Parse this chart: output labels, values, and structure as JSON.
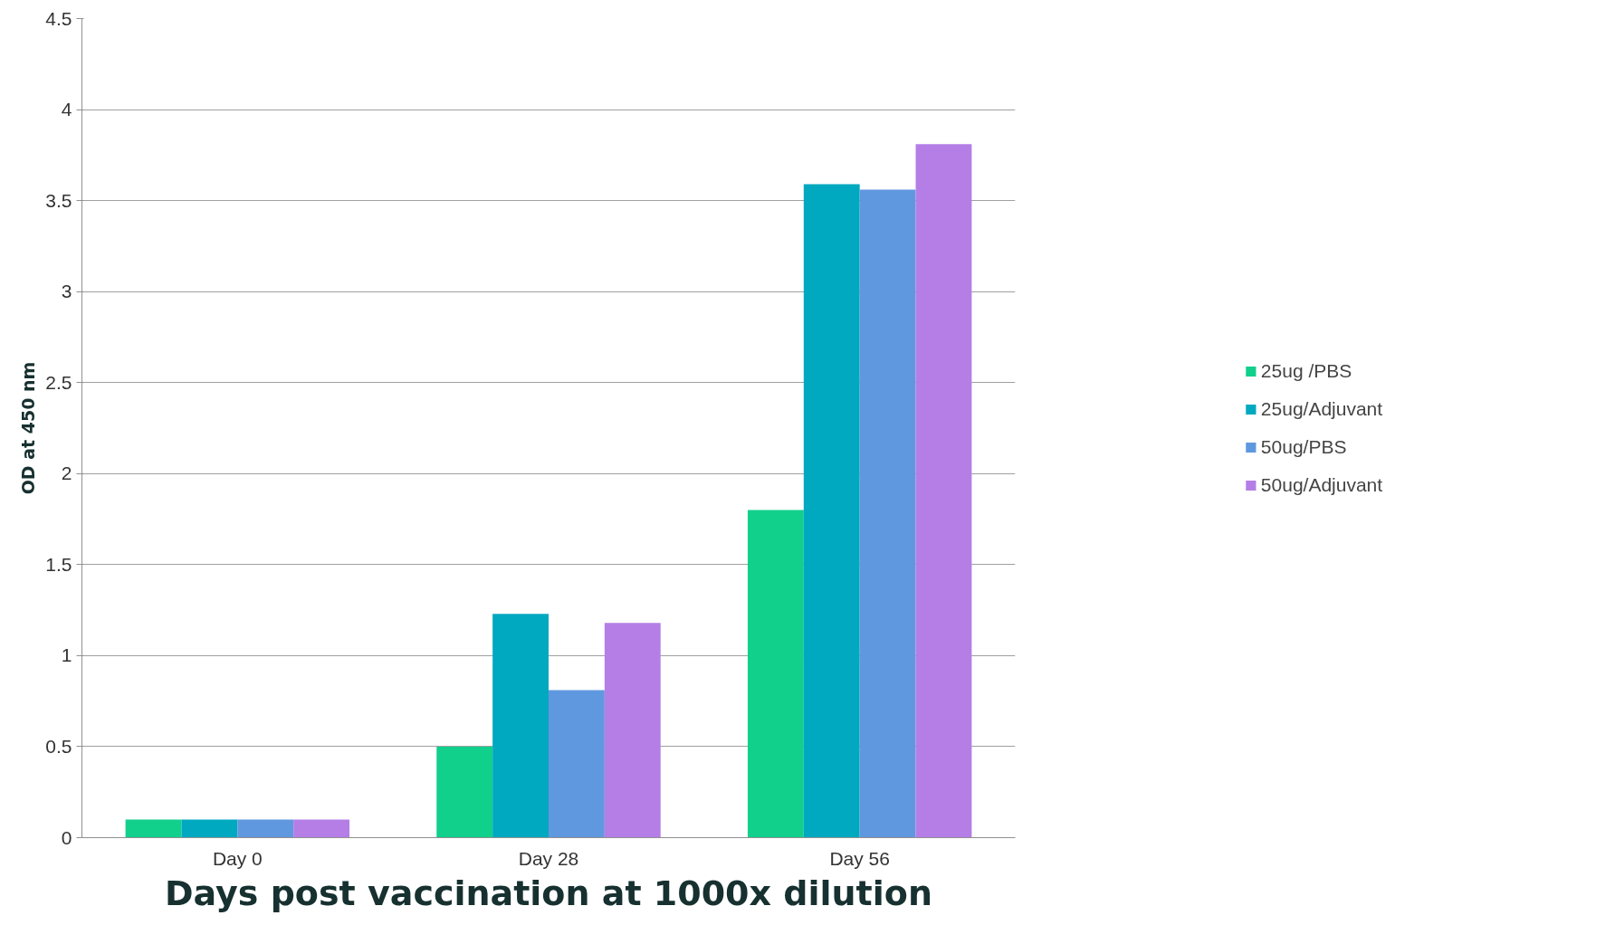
{
  "chart_data": {
    "type": "bar",
    "xlabel": "Days post vaccination at 1000x dilution",
    "ylabel": "OD at 450 nm",
    "categories": [
      "Day 0",
      "Day 28",
      "Day 56"
    ],
    "series": [
      {
        "name": "25ug /PBS",
        "color": "#10d08c",
        "values": [
          0.1,
          0.5,
          1.8
        ]
      },
      {
        "name": "25ug/Adjuvant",
        "color": "#00a8c0",
        "values": [
          0.1,
          1.23,
          3.59
        ]
      },
      {
        "name": "50ug/PBS",
        "color": "#6098e0",
        "values": [
          0.1,
          0.81,
          3.56
        ]
      },
      {
        "name": "50ug/Adjuvant",
        "color": "#b47ee6",
        "values": [
          0.1,
          1.18,
          3.81
        ]
      }
    ],
    "ylim": [
      0,
      4.5
    ],
    "yticks": [
      0,
      0.5,
      1,
      1.5,
      2,
      2.5,
      3,
      3.5,
      4,
      4.5
    ],
    "grid": "y",
    "legend": "right"
  }
}
